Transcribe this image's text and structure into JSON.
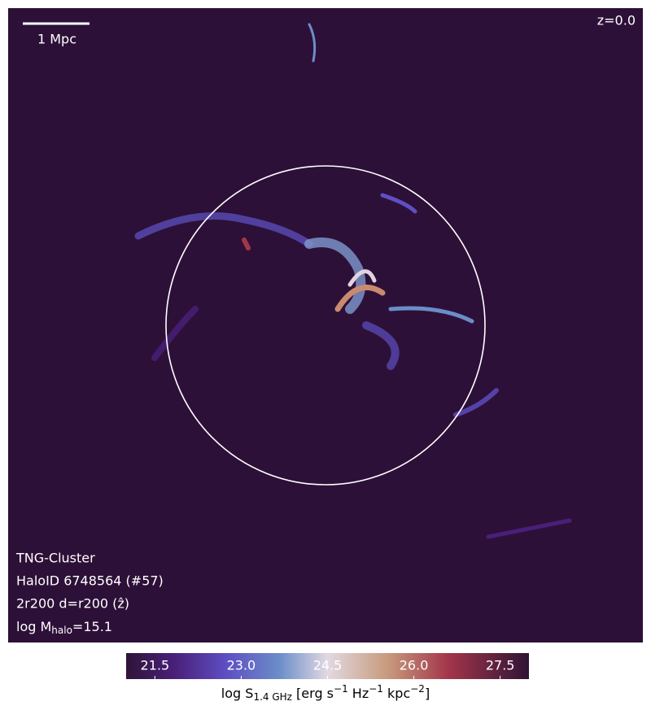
{
  "chart_data": {
    "type": "heatmap",
    "scale_bar_label": "1 Mpc",
    "redshift_label": "z=0.0",
    "info": [
      "TNG-Cluster",
      "HaloID 6748564 (#57)",
      "2r200 d=r200 (ẑ)"
    ],
    "mass_label": [
      "log M",
      "halo",
      "=15.1"
    ],
    "colorbar": {
      "lim": [
        21,
        28
      ],
      "ticks": [
        21.5,
        {
          "value": 23,
          "label": "23.0"
        },
        24.5,
        {
          "value": 26,
          "label": "26.0"
        },
        27.5
      ],
      "label": [
        "log S",
        "1.4 GHz",
        " [erg s",
        "−1",
        " Hz",
        "−1",
        " kpc",
        "−2",
        "]"
      ]
    }
  }
}
